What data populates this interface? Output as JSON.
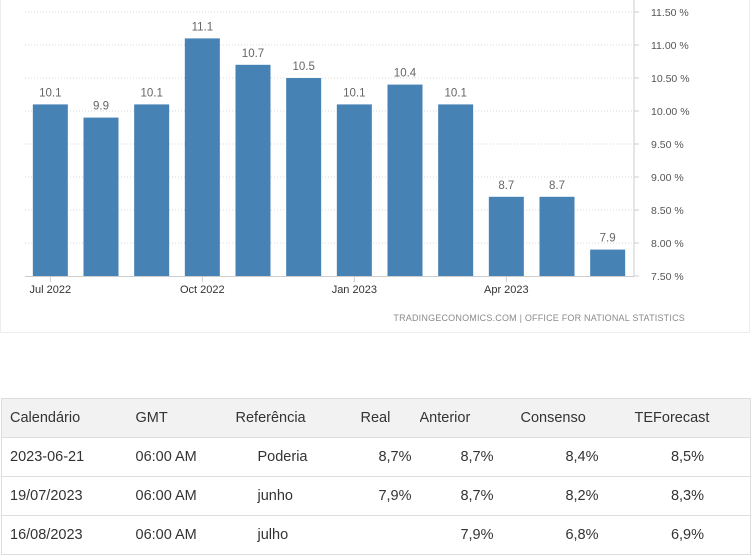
{
  "chart_data": {
    "type": "bar",
    "categories": [
      "Jul 2022",
      "Aug 2022",
      "Sep 2022",
      "Oct 2022",
      "Nov 2022",
      "Dec 2022",
      "Jan 2023",
      "Feb 2023",
      "Mar 2023",
      "Apr 2023",
      "May 2023",
      "Jun 2023"
    ],
    "values": [
      10.1,
      9.9,
      10.1,
      11.1,
      10.7,
      10.5,
      10.1,
      10.4,
      10.1,
      8.7,
      8.7,
      7.9
    ],
    "value_labels": [
      "10.1",
      "9.9",
      "10.1",
      "11.1",
      "10.7",
      "10.5",
      "10.1",
      "10.4",
      "10.1",
      "8.7",
      "8.7",
      "7.9"
    ],
    "x_tick_labels": [
      {
        "category": "Jul 2022",
        "label": "Jul 2022"
      },
      {
        "category": "Oct 2022",
        "label": "Oct 2022"
      },
      {
        "category": "Jan 2023",
        "label": "Jan 2023"
      },
      {
        "category": "Apr 2023",
        "label": "Apr 2023"
      }
    ],
    "y_ticks": [
      7.5,
      8.0,
      8.5,
      9.0,
      9.5,
      10.0,
      10.5,
      11.0,
      11.5
    ],
    "y_tick_labels": [
      "7.50 %",
      "8.00 %",
      "8.50 %",
      "9.00 %",
      "9.50 %",
      "10.00 %",
      "10.50 %",
      "11.00 %",
      "11.50 %"
    ],
    "ylim": [
      7.5,
      11.5
    ],
    "y_axis_side": "right",
    "grid": "horizontal dotted",
    "bar_color": "#4682b4",
    "title": "",
    "xlabel": "",
    "ylabel": ""
  },
  "source": "TRADINGECONOMICS.COM  |  OFFICE FOR NATIONAL STATISTICS",
  "table": {
    "headers": [
      "Calendário",
      "GMT",
      "Referência",
      "Real",
      "Anterior",
      "Consenso",
      "TEForecast"
    ],
    "rows": [
      [
        "2023-06-21",
        "06:00 AM",
        "Poderia",
        "8,7%",
        "8,7%",
        "8,4%",
        "8,5%"
      ],
      [
        "19/07/2023",
        "06:00 AM",
        "junho",
        "7,9%",
        "8,7%",
        "8,2%",
        "8,3%"
      ],
      [
        "16/08/2023",
        "06:00 AM",
        "julho",
        "",
        "7,9%",
        "6,8%",
        "6,9%"
      ]
    ]
  }
}
